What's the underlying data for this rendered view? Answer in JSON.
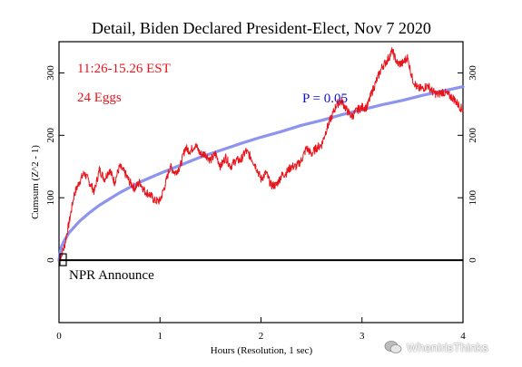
{
  "chart_data": {
    "type": "line",
    "title": "Detail, Biden Declared President-Elect, Nov 7 2020",
    "xlabel": "Hours (Resolution, 1 sec)",
    "ylabel": "Cumsum (Z^2 - 1)",
    "xlim": [
      0,
      4
    ],
    "ylim": [
      -100,
      350
    ],
    "x_ticks": [
      0,
      1,
      2,
      3,
      4
    ],
    "y_ticks": [
      0,
      100,
      200,
      300
    ],
    "grid": false,
    "annotations": {
      "time_range": "11:26-15.26 EST",
      "eggs": "24 Eggs",
      "p_label": "P = 0.05",
      "event_label": "NPR Announce"
    },
    "series": [
      {
        "name": "cumsum",
        "color": "#e8141c",
        "x": [
          0.0,
          0.05,
          0.1,
          0.15,
          0.2,
          0.25,
          0.3,
          0.35,
          0.4,
          0.45,
          0.5,
          0.55,
          0.6,
          0.65,
          0.7,
          0.75,
          0.8,
          0.85,
          0.9,
          0.95,
          1.0,
          1.05,
          1.1,
          1.15,
          1.2,
          1.25,
          1.3,
          1.35,
          1.4,
          1.45,
          1.5,
          1.55,
          1.6,
          1.65,
          1.7,
          1.75,
          1.8,
          1.85,
          1.9,
          1.95,
          2.0,
          2.05,
          2.1,
          2.15,
          2.2,
          2.25,
          2.3,
          2.35,
          2.4,
          2.45,
          2.5,
          2.55,
          2.6,
          2.65,
          2.7,
          2.75,
          2.8,
          2.85,
          2.9,
          2.95,
          3.0,
          3.05,
          3.1,
          3.15,
          3.2,
          3.25,
          3.3,
          3.35,
          3.4,
          3.45,
          3.5,
          3.55,
          3.6,
          3.65,
          3.7,
          3.75,
          3.8,
          3.85,
          3.9,
          3.95,
          4.0
        ],
        "values": [
          0,
          20,
          60,
          105,
          125,
          140,
          125,
          110,
          145,
          130,
          145,
          125,
          150,
          140,
          125,
          115,
          125,
          110,
          105,
          95,
          95,
          120,
          150,
          140,
          150,
          180,
          175,
          185,
          170,
          170,
          160,
          170,
          150,
          165,
          150,
          160,
          160,
          175,
          165,
          150,
          130,
          140,
          120,
          120,
          135,
          140,
          150,
          150,
          160,
          180,
          170,
          180,
          185,
          210,
          230,
          250,
          255,
          240,
          230,
          240,
          245,
          245,
          270,
          290,
          310,
          320,
          335,
          315,
          315,
          325,
          290,
          275,
          275,
          280,
          270,
          265,
          270,
          265,
          260,
          250,
          240
        ]
      },
      {
        "name": "P = 0.05",
        "color": "#8088ee",
        "x": [
          0.0,
          0.02,
          0.05,
          0.1,
          0.2,
          0.3,
          0.4,
          0.5,
          0.6,
          0.8,
          1.0,
          1.2,
          1.4,
          1.6,
          1.8,
          2.0,
          2.2,
          2.4,
          2.6,
          2.8,
          3.0,
          3.2,
          3.4,
          3.6,
          3.8,
          4.0
        ],
        "values": [
          0,
          20,
          31,
          44,
          62,
          76,
          88,
          98,
          108,
          125,
          139,
          152,
          165,
          176,
          187,
          197,
          206,
          216,
          224,
          233,
          241,
          249,
          256,
          264,
          271,
          278
        ]
      }
    ]
  }
}
